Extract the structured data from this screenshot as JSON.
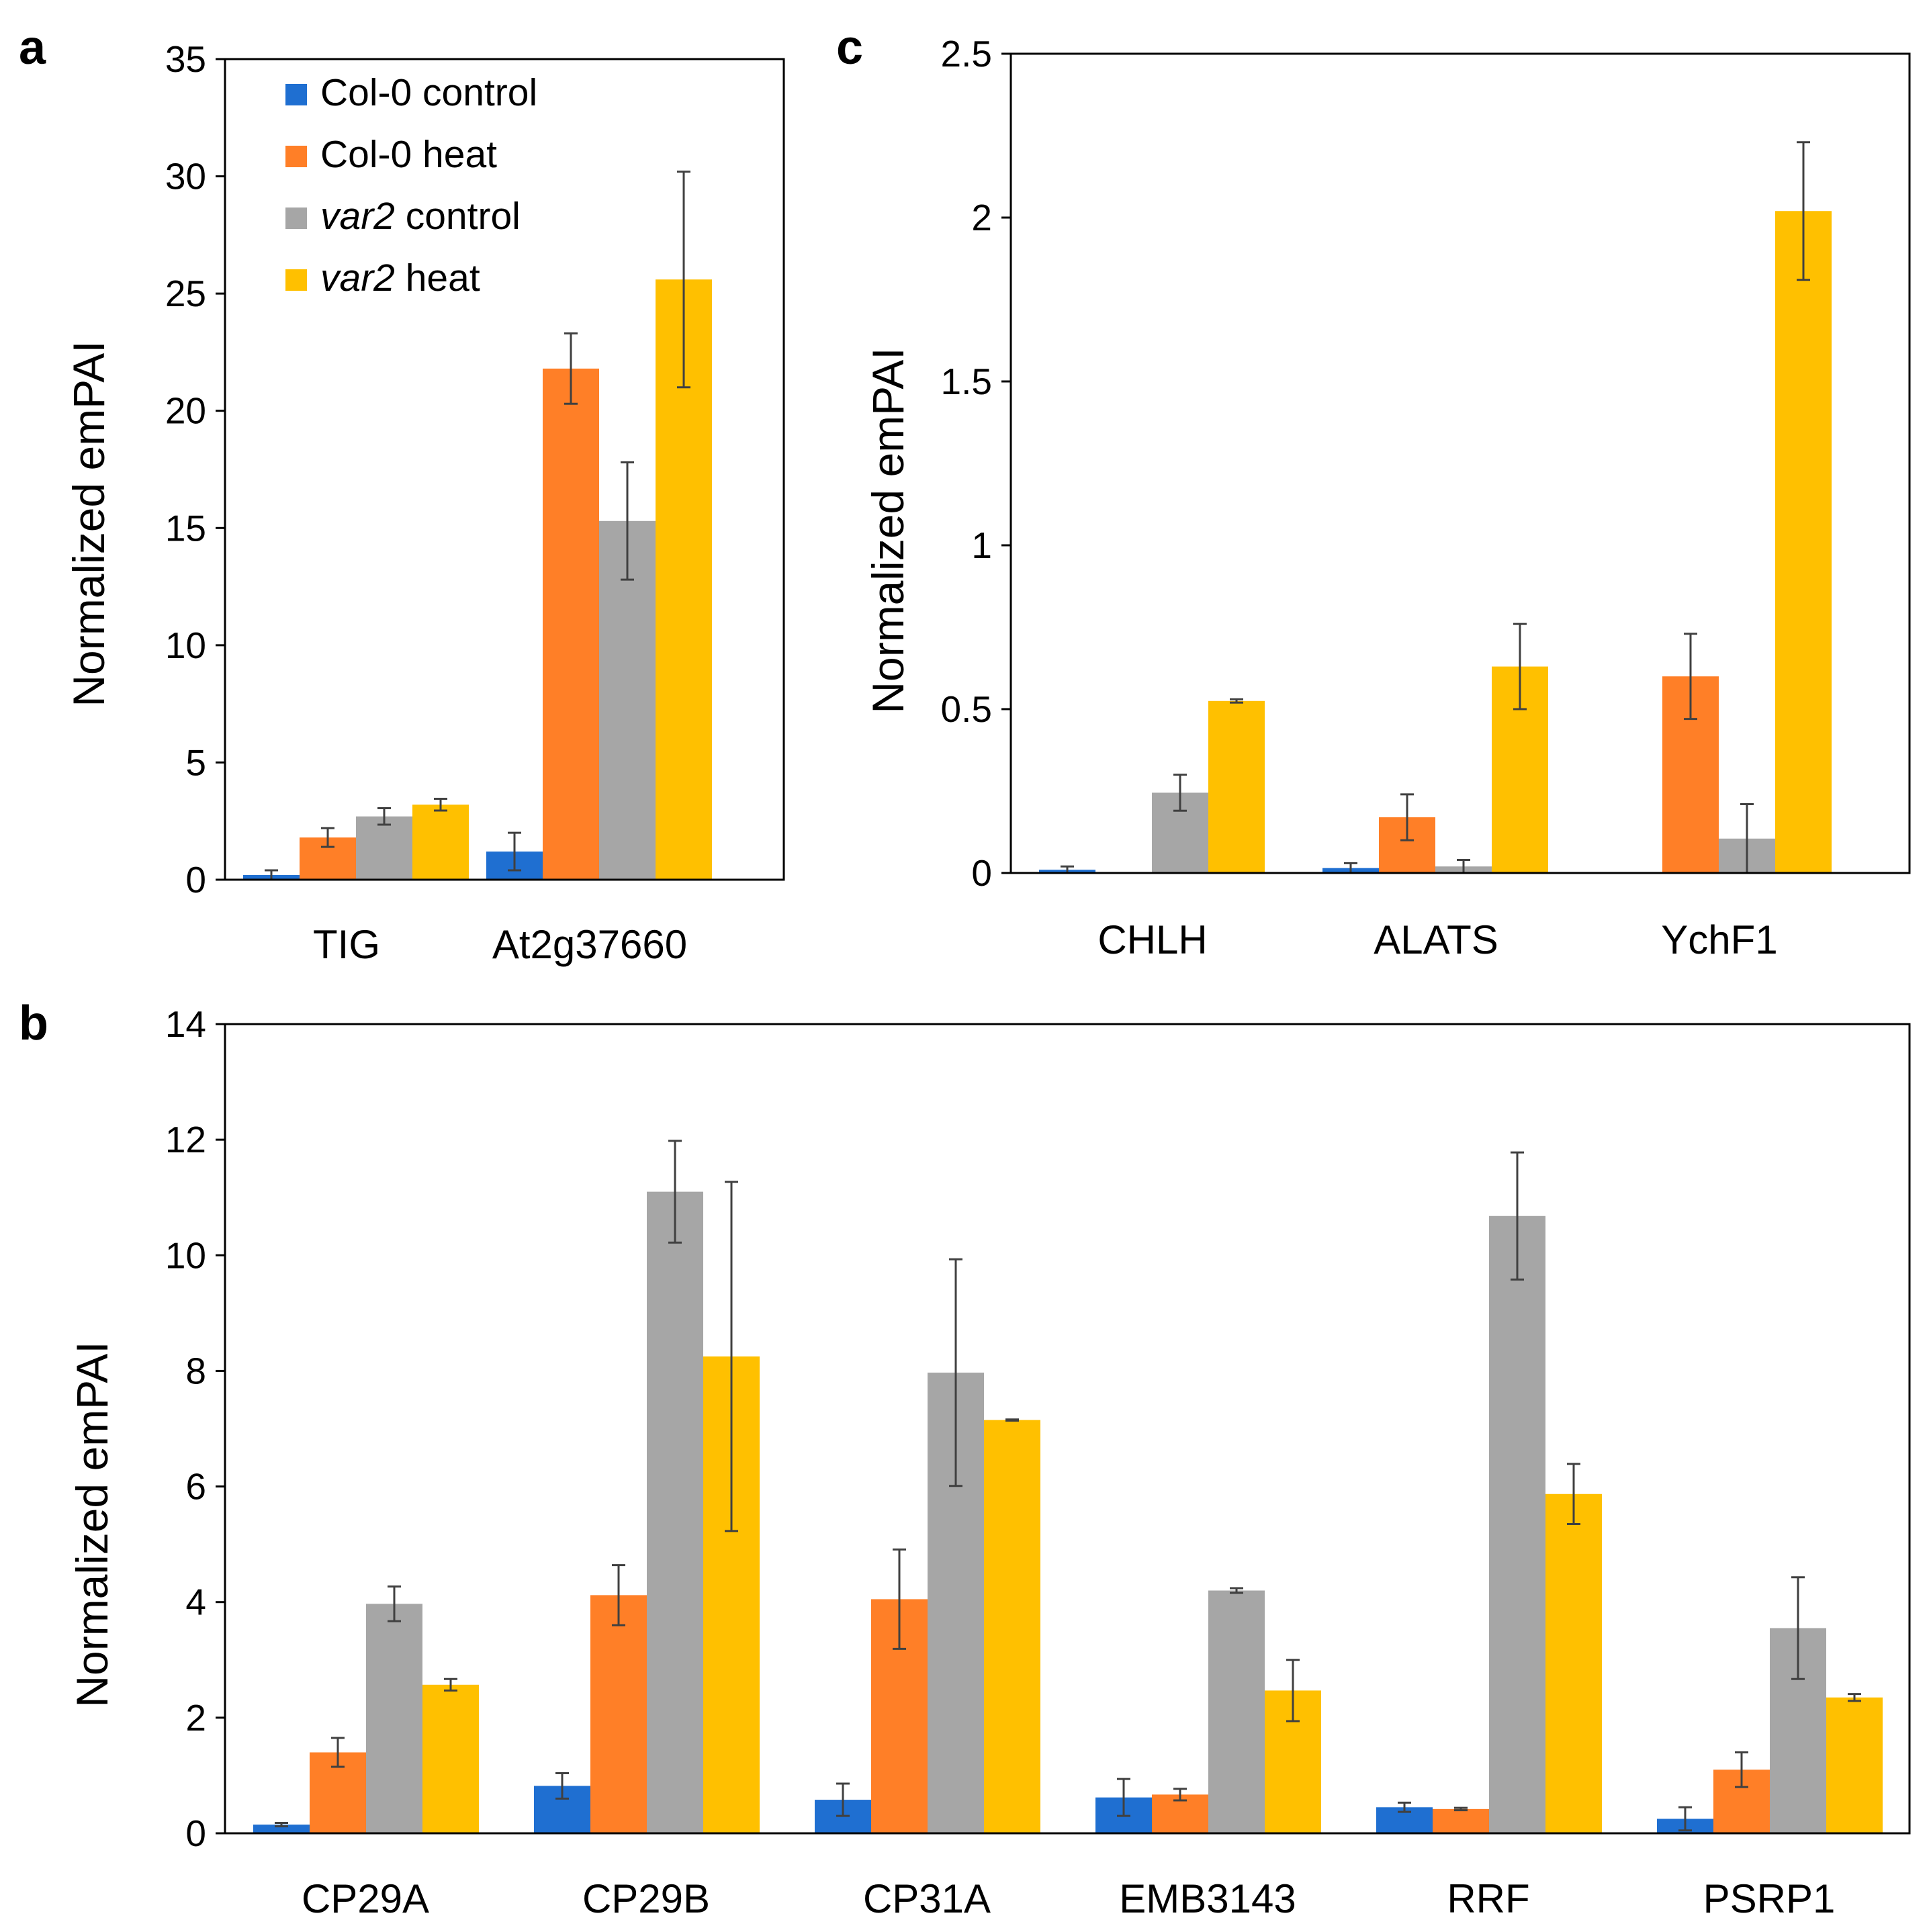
{
  "colors": {
    "Col-0 control": "#1f6fd1",
    "Col-0 heat": "#ff7f27",
    "var2 control": "#a6a6a6",
    "var2 heat": "#ffc000"
  },
  "legend": [
    {
      "key": "Col-0 control",
      "prefix": "",
      "italic": "",
      "label": "Col-0 control"
    },
    {
      "key": "Col-0 heat",
      "prefix": "",
      "italic": "",
      "label": "Col-0 heat"
    },
    {
      "key": "var2 control",
      "prefix": "",
      "italic": "var2",
      "label": " control"
    },
    {
      "key": "var2 heat",
      "prefix": "",
      "italic": "var2",
      "label": " heat"
    }
  ],
  "chart_data": [
    {
      "panel": "a",
      "type": "bar",
      "ylabel": "Normalized emPAI",
      "ylim": [
        0,
        35
      ],
      "yticks": [
        0,
        5,
        10,
        15,
        20,
        25,
        30,
        35
      ],
      "ytick_labels": [
        "0",
        "5",
        "10",
        "15",
        "20",
        "25",
        "30",
        "35"
      ],
      "categories": [
        "TIG",
        "At2g37660"
      ],
      "legend_position": "top-left",
      "series": [
        {
          "name": "Col-0 control",
          "values": [
            0.2,
            1.2
          ],
          "errors": [
            0.2,
            0.8
          ]
        },
        {
          "name": "Col-0 heat",
          "values": [
            1.8,
            21.8
          ],
          "errors": [
            0.4,
            1.5
          ]
        },
        {
          "name": "var2 control",
          "values": [
            2.7,
            15.3
          ],
          "errors": [
            0.35,
            2.5
          ]
        },
        {
          "name": "var2 heat",
          "values": [
            3.2,
            25.6
          ],
          "errors": [
            0.25,
            4.6
          ]
        }
      ]
    },
    {
      "panel": "c",
      "type": "bar",
      "ylabel": "Normalized emPAI",
      "ylim": [
        0,
        2.5
      ],
      "yticks": [
        0,
        0.5,
        1,
        1.5,
        2,
        2.5
      ],
      "ytick_labels": [
        "0",
        "0.5",
        "1",
        "1.5",
        "2",
        "2.5"
      ],
      "categories": [
        "CHLH",
        "ALATS",
        "YchF1"
      ],
      "series": [
        {
          "name": "Col-0 control",
          "values": [
            0.01,
            0.015,
            0
          ],
          "errors": [
            0.01,
            0.015,
            0
          ]
        },
        {
          "name": "Col-0 heat",
          "values": [
            0,
            0.17,
            0.6
          ],
          "errors": [
            0,
            0.07,
            0.13
          ]
        },
        {
          "name": "var2 control",
          "values": [
            0.245,
            0.02,
            0.105
          ],
          "errors": [
            0.055,
            0.02,
            0.105
          ]
        },
        {
          "name": "var2 heat",
          "values": [
            0.525,
            0.63,
            2.02
          ],
          "errors": [
            0.005,
            0.13,
            0.21
          ]
        }
      ]
    },
    {
      "panel": "b",
      "type": "bar",
      "ylabel": "Normalized emPAI",
      "ylim": [
        0,
        14
      ],
      "yticks": [
        0,
        2,
        4,
        6,
        8,
        10,
        12,
        14
      ],
      "ytick_labels": [
        "0",
        "2",
        "4",
        "6",
        "8",
        "10",
        "12",
        "14"
      ],
      "categories": [
        "CP29A",
        "CP29B",
        "CP31A",
        "EMB3143",
        "RRF",
        "PSRP1"
      ],
      "series": [
        {
          "name": "Col-0 control",
          "values": [
            0.15,
            0.82,
            0.58,
            0.62,
            0.45,
            0.25
          ],
          "errors": [
            0.03,
            0.22,
            0.28,
            0.32,
            0.08,
            0.2
          ]
        },
        {
          "name": "Col-0 heat",
          "values": [
            1.4,
            4.12,
            4.05,
            0.67,
            0.42,
            1.1
          ],
          "errors": [
            0.25,
            0.52,
            0.86,
            0.1,
            0.02,
            0.3
          ]
        },
        {
          "name": "var2 control",
          "values": [
            3.97,
            11.1,
            7.97,
            4.2,
            10.68,
            3.55
          ],
          "errors": [
            0.3,
            0.88,
            1.96,
            0.04,
            1.1,
            0.88
          ]
        },
        {
          "name": "var2 heat",
          "values": [
            2.57,
            8.25,
            7.15,
            2.47,
            5.87,
            2.35
          ],
          "errors": [
            0.1,
            3.02,
            0.01,
            0.53,
            0.52,
            0.06
          ]
        }
      ]
    }
  ]
}
